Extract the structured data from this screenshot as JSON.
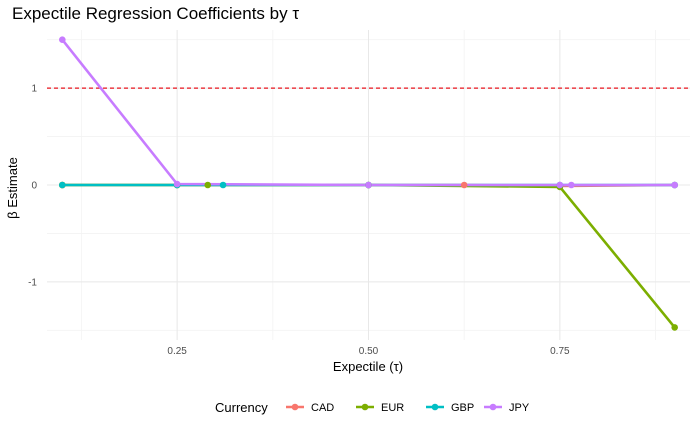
{
  "chart_data": {
    "type": "line",
    "title": "Expectile Regression Coefficients by τ",
    "xlabel": "Expectile (τ)",
    "ylabel": "β Estimate",
    "xlim": [
      0.08,
      0.92
    ],
    "ylim": [
      -1.6,
      1.6
    ],
    "x_ticks": [
      0.25,
      0.5,
      0.75
    ],
    "x_tick_labels": [
      "0.25",
      "0.50",
      "0.75"
    ],
    "y_ticks": [
      -1,
      0,
      1
    ],
    "y_tick_labels": [
      "-1",
      "0",
      "1"
    ],
    "grid": true,
    "reference_line": {
      "y": 1,
      "color": "#e8141d",
      "style": "dashed"
    },
    "legend": {
      "title": "Currency",
      "position": "bottom"
    },
    "series": [
      {
        "name": "CAD",
        "color": "#f8766d",
        "x": [
          0.1,
          0.25,
          0.5,
          0.625,
          0.75,
          0.9
        ],
        "y": [
          0.0,
          0.0,
          0.0,
          0.0,
          -0.01,
          0.0
        ]
      },
      {
        "name": "EUR",
        "color": "#7cae00",
        "x": [
          0.1,
          0.25,
          0.29,
          0.5,
          0.75,
          0.9
        ],
        "y": [
          0.0,
          0.0,
          0.0,
          0.0,
          -0.02,
          -1.47
        ]
      },
      {
        "name": "GBP",
        "color": "#00bfc4",
        "x": [
          0.1,
          0.25,
          0.31,
          0.5,
          0.75,
          0.9
        ],
        "y": [
          0.0,
          0.0,
          0.0,
          0.0,
          0.0,
          0.0
        ]
      },
      {
        "name": "JPY",
        "color": "#c77cff",
        "x": [
          0.1,
          0.25,
          0.5,
          0.75,
          0.765,
          0.9
        ],
        "y": [
          1.5,
          0.01,
          0.0,
          0.0,
          0.0,
          0.0
        ]
      }
    ]
  }
}
